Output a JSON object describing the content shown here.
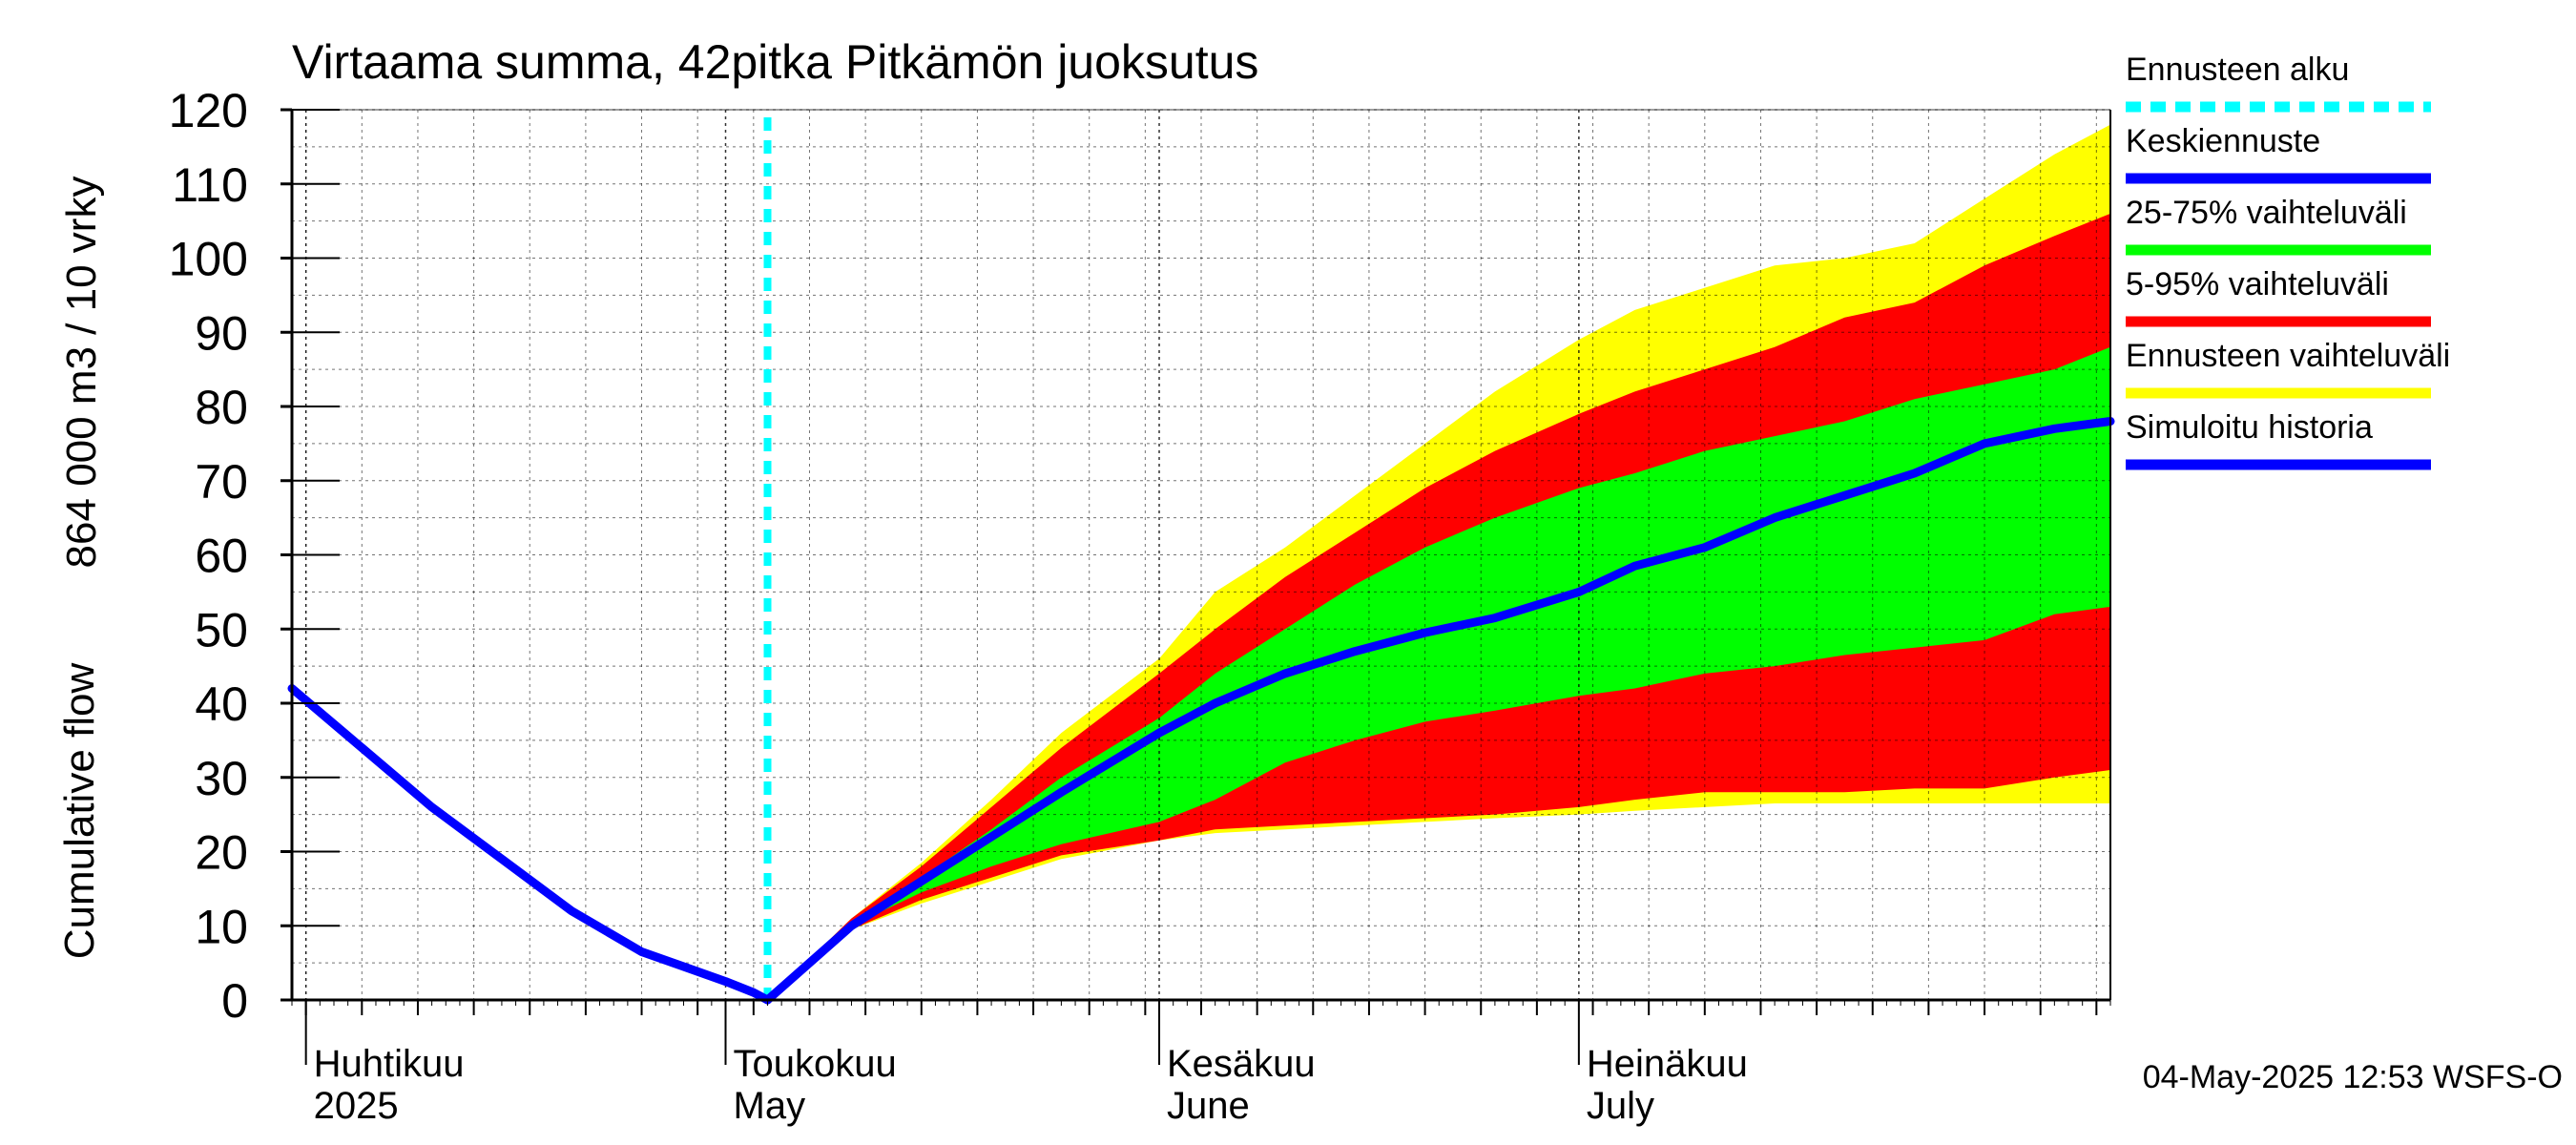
{
  "chart_data": {
    "type": "area",
    "title": "Virtaama summa, 42pitka Pitkämön juoksutus",
    "ylabel_line1": "864 000 m3 / 10 vrky",
    "ylabel_line2": "Cumulative flow",
    "xlabel": "",
    "ylim": [
      0,
      120
    ],
    "yticks": [
      0,
      10,
      20,
      30,
      40,
      50,
      60,
      70,
      80,
      90,
      100,
      110,
      120
    ],
    "xlim": [
      "2025-03-31",
      "2025-08-08"
    ],
    "grid": true,
    "legend_position": "right",
    "footer": "04-May-2025 12:53 WSFS-O",
    "forecast_start": "2025-05-04",
    "month_labels": [
      {
        "date": "2025-04-01",
        "line1": "Huhtikuu",
        "line2": "2025"
      },
      {
        "date": "2025-05-01",
        "line1": "Toukokuu",
        "line2": "May"
      },
      {
        "date": "2025-06-01",
        "line1": "Kesäkuu",
        "line2": "June"
      },
      {
        "date": "2025-07-01",
        "line1": "Heinäkuu",
        "line2": "July"
      }
    ],
    "legend": [
      {
        "label": "Ennusteen alku",
        "color": "#00ffff",
        "style": "dashed"
      },
      {
        "label": "Keskiennuste",
        "color": "#0000ff",
        "style": "solid"
      },
      {
        "label": "25-75% vaihteluväli",
        "color": "#00ff00",
        "style": "solid"
      },
      {
        "label": "5-95% vaihteluväli",
        "color": "#ff0000",
        "style": "solid"
      },
      {
        "label": "Ennusteen vaihteluväli",
        "color": "#ffff00",
        "style": "solid"
      },
      {
        "label": "Simuloitu historia",
        "color": "#0000ff",
        "style": "solid"
      }
    ],
    "colors": {
      "full_range": "#ffff00",
      "p5_95": "#ff0000",
      "p25_75": "#00ff00",
      "median": "#0000ff",
      "history": "#0000ff",
      "forecast_start": "#00ffff"
    },
    "history": {
      "x": [
        "2025-03-31",
        "2025-04-05",
        "2025-04-10",
        "2025-04-15",
        "2025-04-20",
        "2025-04-25",
        "2025-04-28",
        "2025-05-01",
        "2025-05-03",
        "2025-05-04"
      ],
      "y": [
        42,
        34,
        26,
        19,
        12,
        6.5,
        4.5,
        2.5,
        1.0,
        0
      ]
    },
    "bands": {
      "x": [
        "2025-05-04",
        "2025-05-10",
        "2025-05-15",
        "2025-05-20",
        "2025-05-25",
        "2025-06-01",
        "2025-06-05",
        "2025-06-10",
        "2025-06-15",
        "2025-06-20",
        "2025-06-25",
        "2025-07-01",
        "2025-07-05",
        "2025-07-10",
        "2025-07-15",
        "2025-07-20",
        "2025-07-25",
        "2025-07-30",
        "2025-08-04",
        "2025-08-08"
      ],
      "full_max": [
        0,
        11,
        18.5,
        27,
        36,
        46,
        55,
        61,
        68,
        75,
        82,
        89,
        93,
        96,
        99,
        100,
        102,
        108,
        114,
        118
      ],
      "p95": [
        0,
        11,
        18,
        26,
        34,
        44,
        50,
        57,
        63,
        69,
        74,
        79,
        82,
        85,
        88,
        92,
        94,
        99,
        103,
        106
      ],
      "p75": [
        0,
        10.5,
        16.5,
        23,
        30,
        38,
        44,
        50,
        56,
        61,
        65,
        69,
        71,
        74,
        76,
        78,
        81,
        83,
        85,
        88
      ],
      "median": [
        0,
        10,
        16,
        22,
        28,
        36,
        40,
        44,
        47,
        49.5,
        51.5,
        55,
        58.5,
        61,
        65,
        68,
        71,
        75,
        77,
        78
      ],
      "p25": [
        0,
        10,
        14.5,
        18,
        21,
        24,
        27,
        32,
        35,
        37.5,
        39,
        41,
        42,
        44,
        45,
        46.5,
        47.5,
        48.5,
        52,
        53
      ],
      "p5": [
        0,
        9.5,
        13.5,
        16.5,
        19.5,
        21.5,
        23,
        23.5,
        24,
        24.5,
        25,
        26,
        27,
        28,
        28,
        28,
        28.5,
        28.5,
        30,
        31
      ],
      "full_min": [
        0,
        9.5,
        13,
        16,
        19,
        21.5,
        22.5,
        23,
        23.5,
        24,
        24.5,
        25,
        25.5,
        26,
        26.5,
        26.5,
        26.5,
        26.5,
        26.5,
        26.5
      ]
    }
  }
}
